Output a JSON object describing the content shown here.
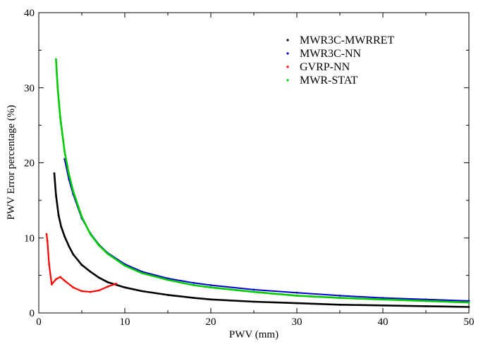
{
  "chart_data": {
    "type": "scatter",
    "xlabel": "PWV (mm)",
    "ylabel": "PWV Error percentage (%)",
    "xlim": [
      0,
      50
    ],
    "ylim": [
      0,
      40
    ],
    "x_ticks": [
      "0",
      "10",
      "20",
      "30",
      "40",
      "50"
    ],
    "y_ticks": [
      "0",
      "10",
      "20",
      "30",
      "40"
    ],
    "grid": false,
    "legend_position": "top-right",
    "series": [
      {
        "name": "MWR3C-MWRRET",
        "color": "#000000",
        "x": [
          1.8,
          2.0,
          2.3,
          2.6,
          3.0,
          3.5,
          4.0,
          5.0,
          6.0,
          7.0,
          8.0,
          10.0,
          12.0,
          15.0,
          18.0,
          20.0,
          25.0,
          30.0,
          35.0,
          40.0,
          45.0,
          50.0
        ],
        "y": [
          18.6,
          15.7,
          13.0,
          11.5,
          10.2,
          8.9,
          7.8,
          6.4,
          5.5,
          4.7,
          4.1,
          3.4,
          2.9,
          2.4,
          2.0,
          1.8,
          1.5,
          1.3,
          1.1,
          1.0,
          0.9,
          0.8
        ]
      },
      {
        "name": "MWR3C-NN",
        "color": "#0000cc",
        "x": [
          3.0,
          3.5,
          4.0,
          5.0,
          6.0,
          7.0,
          8.0,
          10.0,
          12.0,
          15.0,
          18.0,
          20.0,
          25.0,
          30.0,
          35.0,
          40.0,
          45.0,
          50.0
        ],
        "y": [
          20.5,
          17.8,
          15.8,
          12.6,
          10.6,
          9.1,
          8.0,
          6.5,
          5.5,
          4.6,
          4.0,
          3.7,
          3.1,
          2.7,
          2.3,
          2.0,
          1.8,
          1.6
        ]
      },
      {
        "name": "GVRP-NN",
        "color": "#ff0000",
        "x": [
          0.9,
          1.0,
          1.2,
          1.5,
          2.0,
          2.5,
          3.0,
          4.0,
          5.0,
          6.0,
          7.0,
          8.0,
          9.0
        ],
        "y": [
          10.5,
          9.6,
          6.5,
          3.8,
          4.5,
          4.8,
          4.3,
          3.4,
          2.9,
          2.8,
          3.0,
          3.5,
          3.9
        ]
      },
      {
        "name": "MWR-STAT",
        "color": "#00cc00",
        "x": [
          2.0,
          2.2,
          2.5,
          3.0,
          3.5,
          4.0,
          5.0,
          6.0,
          7.0,
          8.0,
          10.0,
          12.0,
          15.0,
          18.0,
          20.0,
          25.0,
          30.0,
          35.0,
          40.0,
          45.0,
          50.0
        ],
        "y": [
          33.8,
          30.0,
          26.0,
          21.5,
          18.5,
          16.2,
          12.8,
          10.5,
          9.0,
          7.9,
          6.3,
          5.3,
          4.4,
          3.7,
          3.4,
          2.8,
          2.3,
          2.0,
          1.8,
          1.6,
          1.4
        ]
      }
    ]
  }
}
